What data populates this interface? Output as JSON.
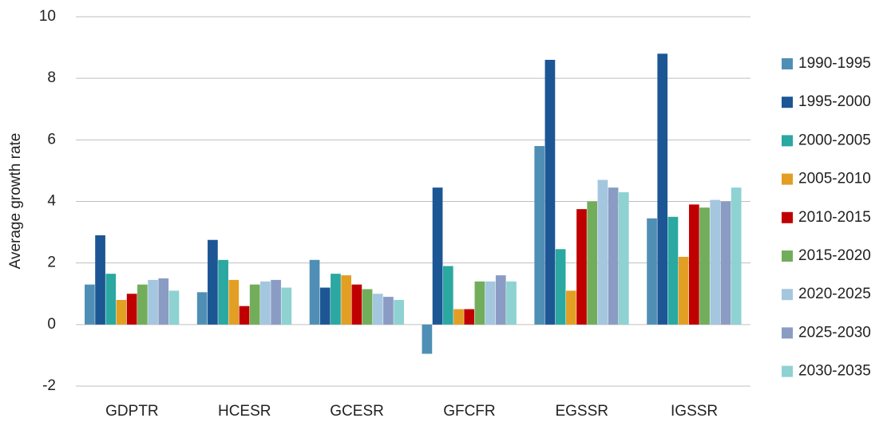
{
  "chart_data": {
    "type": "bar",
    "y_label": "Average growth rate",
    "categories": [
      "GDPTR",
      "HCESR",
      "GCESR",
      "GFCFR",
      "EGSSR",
      "IGSSR"
    ],
    "series": [
      {
        "name": "1990-1995",
        "color": "#4f8fb5",
        "values": [
          1.3,
          1.05,
          2.1,
          -0.95,
          5.8,
          3.45
        ]
      },
      {
        "name": "1995-2000",
        "color": "#1c5694",
        "values": [
          2.9,
          2.75,
          1.2,
          4.45,
          8.6,
          8.8
        ]
      },
      {
        "name": "2000-2005",
        "color": "#2aa8a1",
        "values": [
          1.65,
          2.1,
          1.65,
          1.9,
          2.45,
          3.5
        ]
      },
      {
        "name": "2005-2010",
        "color": "#e39e24",
        "values": [
          0.8,
          1.45,
          1.6,
          0.5,
          1.1,
          2.2
        ]
      },
      {
        "name": "2010-2015",
        "color": "#c00000",
        "values": [
          1.0,
          0.6,
          1.3,
          0.5,
          3.75,
          3.9
        ]
      },
      {
        "name": "2015-2020",
        "color": "#72ad5c",
        "values": [
          1.3,
          1.3,
          1.15,
          1.4,
          4.0,
          3.8
        ]
      },
      {
        "name": "2020-2025",
        "color": "#a5c6df",
        "values": [
          1.45,
          1.4,
          1.0,
          1.4,
          4.7,
          4.05
        ]
      },
      {
        "name": "2025-2030",
        "color": "#8a9cc3",
        "values": [
          1.5,
          1.45,
          0.9,
          1.6,
          4.45,
          4.0
        ]
      },
      {
        "name": "2030-2035",
        "color": "#8ed2d2",
        "values": [
          1.1,
          1.2,
          0.8,
          1.4,
          4.3,
          4.45
        ]
      }
    ],
    "ylim": [
      -2,
      10
    ],
    "yticks": [
      -2,
      0,
      2,
      4,
      6,
      8,
      10
    ],
    "grid": true,
    "legend": "right"
  }
}
